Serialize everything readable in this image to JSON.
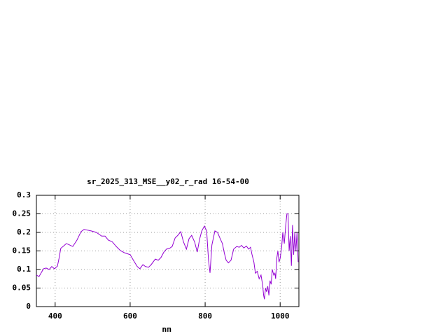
{
  "chart_data": {
    "type": "line",
    "title": "sr_2025_313_MSE__y02_r_rad 16-54-00",
    "xlabel": "nm",
    "xlim": [
      350,
      1050
    ],
    "xticks": [
      400,
      600,
      800,
      1000
    ],
    "ylim": [
      0,
      0.3
    ],
    "yticks": [
      0,
      0.05,
      0.1,
      0.15,
      0.2,
      0.25,
      0.3
    ],
    "grid": true,
    "series": [
      {
        "color": "#9400d3",
        "x": [
          350,
          357,
          369,
          376,
          384,
          391,
          398,
          406,
          410,
          415,
          421,
          430,
          439,
          447,
          458,
          469,
          477,
          496,
          510,
          524,
          533,
          542,
          552,
          563,
          574,
          585,
          600,
          611,
          619,
          626,
          634,
          641,
          649,
          656,
          667,
          675,
          682,
          690,
          697,
          705,
          712,
          720,
          727,
          735,
          742,
          750,
          757,
          764,
          772,
          779,
          785,
          791,
          798,
          804,
          809,
          813,
          818,
          826,
          833,
          841,
          846,
          851,
          856,
          862,
          869,
          876,
          884,
          891,
          897,
          903,
          910,
          916,
          921,
          925,
          930,
          934,
          939,
          944,
          949,
          953,
          956,
          958,
          961,
          964,
          967,
          970,
          973,
          976,
          979,
          983,
          986,
          988,
          991,
          994,
          997,
          1000,
          1004,
          1007,
          1011,
          1015,
          1018,
          1021,
          1024,
          1027,
          1030,
          1033,
          1036,
          1039,
          1042,
          1045,
          1048
        ],
        "values": [
          0.085,
          0.081,
          0.102,
          0.104,
          0.1,
          0.108,
          0.102,
          0.109,
          0.128,
          0.157,
          0.162,
          0.17,
          0.166,
          0.162,
          0.179,
          0.202,
          0.208,
          0.204,
          0.2,
          0.19,
          0.19,
          0.179,
          0.175,
          0.162,
          0.151,
          0.145,
          0.14,
          0.121,
          0.108,
          0.102,
          0.113,
          0.108,
          0.106,
          0.113,
          0.128,
          0.125,
          0.132,
          0.147,
          0.155,
          0.157,
          0.162,
          0.185,
          0.192,
          0.202,
          0.175,
          0.155,
          0.183,
          0.192,
          0.174,
          0.147,
          0.181,
          0.204,
          0.217,
          0.204,
          0.125,
          0.091,
          0.166,
          0.204,
          0.2,
          0.181,
          0.17,
          0.145,
          0.125,
          0.118,
          0.125,
          0.155,
          0.162,
          0.16,
          0.165,
          0.158,
          0.163,
          0.155,
          0.16,
          0.14,
          0.12,
          0.09,
          0.095,
          0.075,
          0.085,
          0.06,
          0.03,
          0.02,
          0.05,
          0.04,
          0.055,
          0.03,
          0.07,
          0.06,
          0.1,
          0.085,
          0.09,
          0.075,
          0.13,
          0.15,
          0.12,
          0.13,
          0.16,
          0.2,
          0.17,
          0.22,
          0.25,
          0.25,
          0.15,
          0.19,
          0.11,
          0.22,
          0.14,
          0.2,
          0.15,
          0.2,
          0.12
        ]
      }
    ]
  }
}
